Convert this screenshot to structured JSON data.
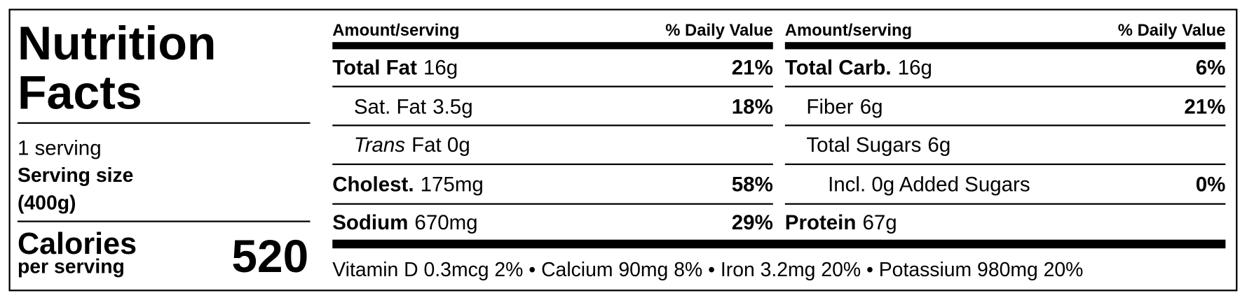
{
  "title_lines": [
    "Nutrition",
    "Facts"
  ],
  "servings": "1 serving",
  "serving_size_label": "Serving size",
  "serving_size": "(400g)",
  "calories_label": "Calories",
  "calories_sub": "per serving",
  "calories": 520,
  "columns": [
    {
      "header_amount": "Amount/serving",
      "header_dv": "% Daily Value",
      "rows": [
        {
          "name": "Total Fat",
          "amount": "16g",
          "dv": "21%",
          "bold": true,
          "indent": 0
        },
        {
          "name": "Sat. Fat",
          "amount": "3.5g",
          "dv": "18%",
          "bold": false,
          "indent": 1
        },
        {
          "name": "Trans",
          "amount": "Fat 0g",
          "bold": false,
          "italic": true,
          "indent": 1
        },
        {
          "name": "Cholest.",
          "amount": "175mg",
          "dv": "58%",
          "bold": true,
          "indent": 0
        },
        {
          "name": "Sodium",
          "amount": "670mg",
          "dv": "29%",
          "bold": true,
          "indent": 0
        }
      ]
    },
    {
      "header_amount": "Amount/serving",
      "header_dv": "% Daily Value",
      "rows": [
        {
          "name": "Total Carb.",
          "amount": "16g",
          "dv": "6%",
          "bold": true,
          "indent": 0
        },
        {
          "name": "Fiber",
          "amount": "6g",
          "dv": "21%",
          "bold": false,
          "indent": 1
        },
        {
          "name": "Total Sugars",
          "amount": "6g",
          "bold": false,
          "indent": 1
        },
        {
          "name": "Incl. 0g Added Sugars",
          "dv": "0%",
          "bold": false,
          "indent": 2
        },
        {
          "name": "Protein",
          "amount": "67g",
          "bold": true,
          "indent": 0
        }
      ]
    }
  ],
  "footer": "Vitamin D 0.3mcg 2% • Calcium 90mg 8% • Iron 3.2mg 20% • Potassium 980mg 20%"
}
